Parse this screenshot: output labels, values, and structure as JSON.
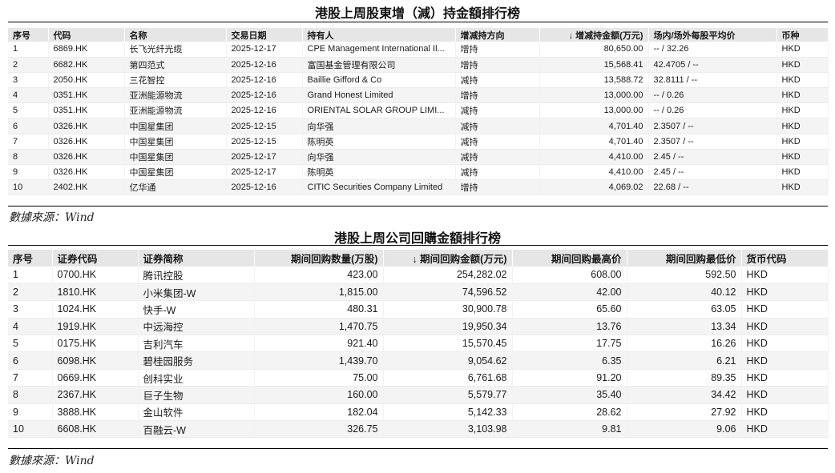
{
  "table1": {
    "title": "港股上周股東增（減）持金額排行榜",
    "headers": [
      "序号",
      "代码",
      "名称",
      "交易日期",
      "持有人",
      "增减持方向",
      "↓ 增减持金额(万元)",
      "场内/场外每股平均价",
      "币种"
    ],
    "rows": [
      [
        "1",
        "6869.HK",
        "长飞光纤光缆",
        "2025-12-17",
        "CPE Management International Il...",
        "增持",
        "80,650.00",
        "-- / 32.26",
        "HKD"
      ],
      [
        "2",
        "6682.HK",
        "第四范式",
        "2025-12-16",
        "富国基金管理有限公司",
        "增持",
        "15,568.41",
        "42.4705 / --",
        "HKD"
      ],
      [
        "3",
        "2050.HK",
        "三花智控",
        "2025-12-16",
        "Baillie Gifford & Co",
        "减持",
        "13,588.72",
        "32.8111 / --",
        "HKD"
      ],
      [
        "4",
        "0351.HK",
        "亚洲能源物流",
        "2025-12-16",
        "Grand Honest Limited",
        "增持",
        "13,000.00",
        "-- / 0.26",
        "HKD"
      ],
      [
        "5",
        "0351.HK",
        "亚洲能源物流",
        "2025-12-16",
        "ORIENTAL SOLAR GROUP LIMI...",
        "减持",
        "13,000.00",
        "-- / 0.26",
        "HKD"
      ],
      [
        "6",
        "0326.HK",
        "中国星集团",
        "2025-12-15",
        "向华强",
        "减持",
        "4,701.40",
        "2.3507 / --",
        "HKD"
      ],
      [
        "7",
        "0326.HK",
        "中国星集团",
        "2025-12-15",
        "陈明英",
        "减持",
        "4,701.40",
        "2.3507 / --",
        "HKD"
      ],
      [
        "8",
        "0326.HK",
        "中国星集团",
        "2025-12-17",
        "向华强",
        "减持",
        "4,410.00",
        "2.45 / --",
        "HKD"
      ],
      [
        "9",
        "0326.HK",
        "中国星集团",
        "2025-12-17",
        "陈明英",
        "减持",
        "4,410.00",
        "2.45 / --",
        "HKD"
      ],
      [
        "10",
        "2402.HK",
        "亿华通",
        "2025-12-16",
        "CITIC Securities Company Limited",
        "增持",
        "4,069.02",
        "22.68 / --",
        "HKD"
      ]
    ],
    "source": "數據來源：Wind"
  },
  "table2": {
    "title": "港股上周公司回購金額排行榜",
    "headers": [
      "序号",
      "证券代码",
      "证券简称",
      "期间回购数量(万股)",
      "↓ 期间回购金额(万元)",
      "期间回购最高价",
      "期间回购最低价",
      "货币代码"
    ],
    "rows": [
      [
        "1",
        "0700.HK",
        "腾讯控股",
        "423.00",
        "254,282.02",
        "608.00",
        "592.50",
        "HKD"
      ],
      [
        "2",
        "1810.HK",
        "小米集团-W",
        "1,815.00",
        "74,596.52",
        "42.00",
        "40.12",
        "HKD"
      ],
      [
        "3",
        "1024.HK",
        "快手-W",
        "480.31",
        "30,900.78",
        "65.60",
        "63.05",
        "HKD"
      ],
      [
        "4",
        "1919.HK",
        "中远海控",
        "1,470.75",
        "19,950.34",
        "13.76",
        "13.34",
        "HKD"
      ],
      [
        "5",
        "0175.HK",
        "吉利汽车",
        "921.40",
        "15,570.45",
        "17.75",
        "16.26",
        "HKD"
      ],
      [
        "6",
        "6098.HK",
        "碧桂园服务",
        "1,439.70",
        "9,054.62",
        "6.35",
        "6.21",
        "HKD"
      ],
      [
        "7",
        "0669.HK",
        "创科实业",
        "75.00",
        "6,761.68",
        "91.20",
        "89.35",
        "HKD"
      ],
      [
        "8",
        "2367.HK",
        "巨子生物",
        "160.00",
        "5,579.77",
        "35.40",
        "34.42",
        "HKD"
      ],
      [
        "9",
        "3888.HK",
        "金山软件",
        "182.04",
        "5,142.33",
        "28.62",
        "27.92",
        "HKD"
      ],
      [
        "10",
        "6608.HK",
        "百融云-W",
        "326.75",
        "3,103.98",
        "9.81",
        "9.06",
        "HKD"
      ]
    ],
    "source": "數據來源：Wind"
  }
}
